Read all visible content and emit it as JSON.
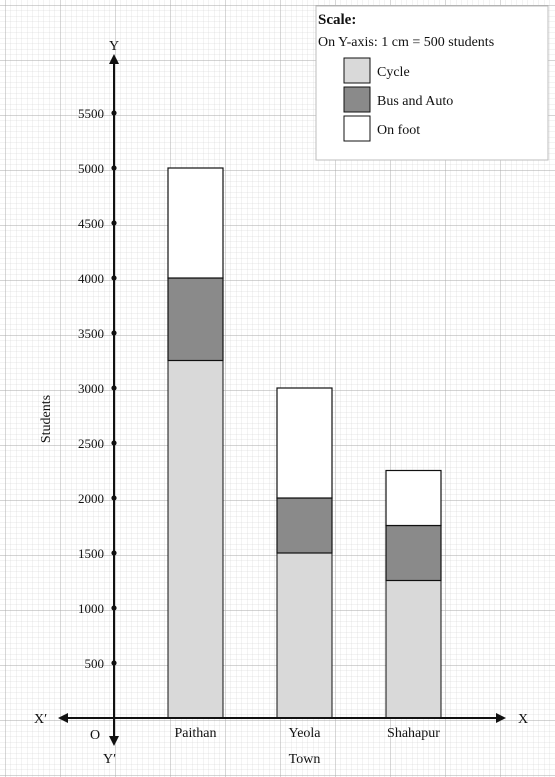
{
  "chart_data": {
    "type": "bar",
    "stacked": true,
    "categories": [
      "Paithan",
      "Yeola",
      "Shahapur"
    ],
    "category_sublabels": [
      "",
      "Town",
      ""
    ],
    "series": [
      {
        "name": "Cycle",
        "values": [
          3250,
          1500,
          1250
        ],
        "color": "#d9d9d9"
      },
      {
        "name": "Bus and Auto",
        "values": [
          750,
          500,
          500
        ],
        "color": "#8a8a8a"
      },
      {
        "name": "On foot",
        "values": [
          1000,
          1000,
          500
        ],
        "color": "#ffffff"
      }
    ],
    "ylabel": "Students",
    "ylim": [
      0,
      5750
    ],
    "yticks": [
      500,
      1000,
      1500,
      2000,
      2500,
      3000,
      3500,
      4000,
      4500,
      5000,
      5500
    ],
    "grid": true,
    "axes_labels": {
      "x_pos": "X",
      "x_neg": "X′",
      "y_pos": "Y",
      "y_neg": "Y′",
      "origin": "O"
    },
    "legend": {
      "position": "top-right",
      "title": "Scale:",
      "scale_text": "On Y-axis: 1 cm = 500 students"
    }
  }
}
